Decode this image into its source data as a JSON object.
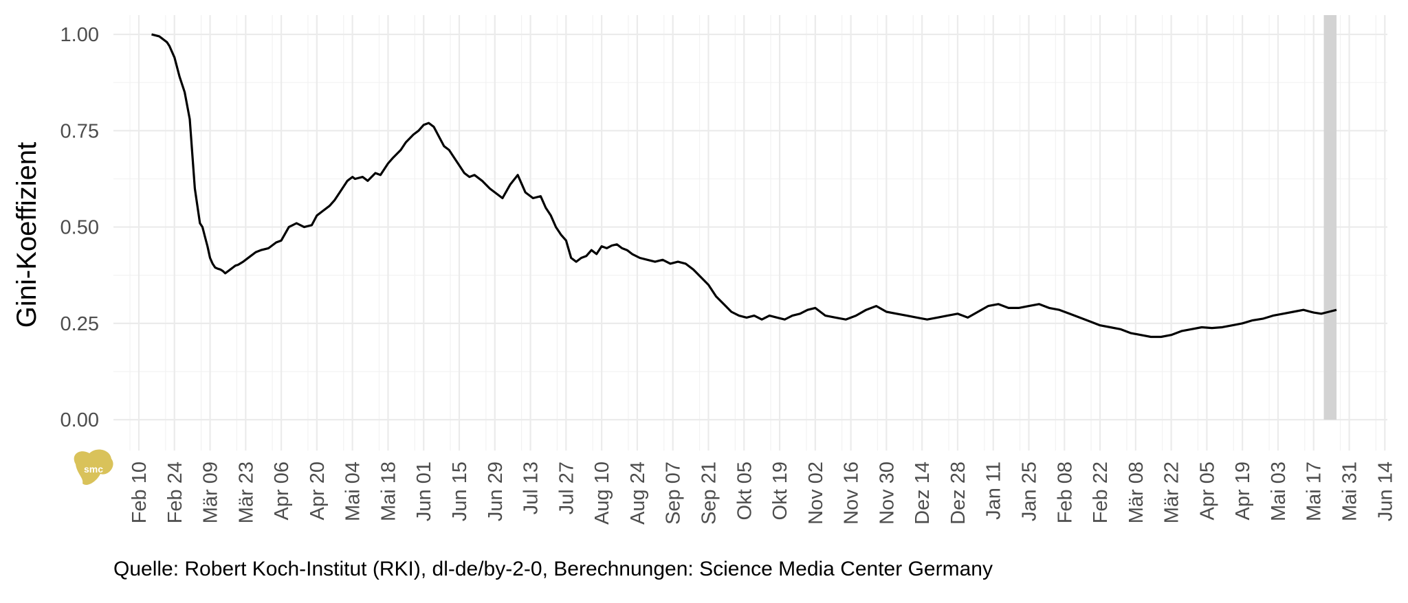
{
  "caption": "Quelle: Robert Koch-Institut (RKI), dl-de/by-2-0, Berechnungen: Science Media Center Germany",
  "logo_text": "smc",
  "colors": {
    "line": "#000000",
    "highlight": "#d3d3d3",
    "logo": "#d9c25a"
  },
  "chart_data": {
    "type": "line",
    "title": "",
    "xlabel": "",
    "ylabel": "Gini-Koeffizient",
    "x_start": "2020-01-31",
    "x_end": "2021-06-15",
    "ylim": [
      -0.08,
      1.05
    ],
    "y_ticks": [
      0.0,
      0.25,
      0.5,
      0.75,
      1.0
    ],
    "y_tick_labels": [
      "0.00",
      "0.25",
      "0.50",
      "0.75",
      "1.00"
    ],
    "x_ticks": [
      {
        "date": "2020-02-10",
        "label": "Feb 10"
      },
      {
        "date": "2020-02-24",
        "label": "Feb 24"
      },
      {
        "date": "2020-03-09",
        "label": "Mär 09"
      },
      {
        "date": "2020-03-23",
        "label": "Mär 23"
      },
      {
        "date": "2020-04-06",
        "label": "Apr 06"
      },
      {
        "date": "2020-04-20",
        "label": "Apr 20"
      },
      {
        "date": "2020-05-04",
        "label": "Mai 04"
      },
      {
        "date": "2020-05-18",
        "label": "Mai 18"
      },
      {
        "date": "2020-06-01",
        "label": "Jun 01"
      },
      {
        "date": "2020-06-15",
        "label": "Jun 15"
      },
      {
        "date": "2020-06-29",
        "label": "Jun 29"
      },
      {
        "date": "2020-07-13",
        "label": "Jul 13"
      },
      {
        "date": "2020-07-27",
        "label": "Jul 27"
      },
      {
        "date": "2020-08-10",
        "label": "Aug 10"
      },
      {
        "date": "2020-08-24",
        "label": "Aug 24"
      },
      {
        "date": "2020-09-07",
        "label": "Sep 07"
      },
      {
        "date": "2020-09-21",
        "label": "Sep 21"
      },
      {
        "date": "2020-10-05",
        "label": "Okt 05"
      },
      {
        "date": "2020-10-19",
        "label": "Okt 19"
      },
      {
        "date": "2020-11-02",
        "label": "Nov 02"
      },
      {
        "date": "2020-11-16",
        "label": "Nov 16"
      },
      {
        "date": "2020-11-30",
        "label": "Nov 30"
      },
      {
        "date": "2020-12-14",
        "label": "Dez 14"
      },
      {
        "date": "2020-12-28",
        "label": "Dez 28"
      },
      {
        "date": "2021-01-11",
        "label": "Jan 11"
      },
      {
        "date": "2021-01-25",
        "label": "Jan 25"
      },
      {
        "date": "2021-02-08",
        "label": "Feb 08"
      },
      {
        "date": "2021-02-22",
        "label": "Feb 22"
      },
      {
        "date": "2021-03-08",
        "label": "Mär 08"
      },
      {
        "date": "2021-03-22",
        "label": "Mär 22"
      },
      {
        "date": "2021-04-05",
        "label": "Apr 05"
      },
      {
        "date": "2021-04-19",
        "label": "Apr 19"
      },
      {
        "date": "2021-05-03",
        "label": "Mai 03"
      },
      {
        "date": "2021-05-17",
        "label": "Mai 17"
      },
      {
        "date": "2021-05-31",
        "label": "Mai 31"
      },
      {
        "date": "2021-06-14",
        "label": "Jun 14"
      }
    ],
    "highlight_range": [
      "2021-05-21",
      "2021-05-26"
    ],
    "grid": true,
    "legend": "none",
    "series": [
      {
        "x": [
          "2020-02-15",
          "2020-02-18",
          "2020-02-19",
          "2020-02-20",
          "2020-02-21",
          "2020-02-22",
          "2020-02-24",
          "2020-02-26",
          "2020-02-28",
          "2020-03-01",
          "2020-03-03",
          "2020-03-05",
          "2020-03-06",
          "2020-03-07",
          "2020-03-08",
          "2020-03-09",
          "2020-03-10",
          "2020-03-11",
          "2020-03-12",
          "2020-03-13",
          "2020-03-14",
          "2020-03-15",
          "2020-03-17",
          "2020-03-18",
          "2020-03-19",
          "2020-03-20",
          "2020-03-22",
          "2020-03-23",
          "2020-03-25",
          "2020-03-27",
          "2020-03-29",
          "2020-04-01",
          "2020-04-04",
          "2020-04-06",
          "2020-04-09",
          "2020-04-12",
          "2020-04-15",
          "2020-04-18",
          "2020-04-20",
          "2020-04-22",
          "2020-04-25",
          "2020-04-27",
          "2020-04-30",
          "2020-05-02",
          "2020-05-04",
          "2020-05-05",
          "2020-05-08",
          "2020-05-10",
          "2020-05-13",
          "2020-05-15",
          "2020-05-18",
          "2020-05-20",
          "2020-05-23",
          "2020-05-25",
          "2020-05-28",
          "2020-05-30",
          "2020-06-01",
          "2020-06-03",
          "2020-06-05",
          "2020-06-07",
          "2020-06-09",
          "2020-06-11",
          "2020-06-13",
          "2020-06-15",
          "2020-06-17",
          "2020-06-19",
          "2020-06-21",
          "2020-06-24",
          "2020-06-27",
          "2020-06-29",
          "2020-07-02",
          "2020-07-05",
          "2020-07-08",
          "2020-07-11",
          "2020-07-14",
          "2020-07-17",
          "2020-07-19",
          "2020-07-21",
          "2020-07-23",
          "2020-07-25",
          "2020-07-27",
          "2020-07-29",
          "2020-07-31",
          "2020-08-02",
          "2020-08-04",
          "2020-08-06",
          "2020-08-08",
          "2020-08-10",
          "2020-08-12",
          "2020-08-14",
          "2020-08-16",
          "2020-08-18",
          "2020-08-20",
          "2020-08-22",
          "2020-08-25",
          "2020-08-28",
          "2020-08-31",
          "2020-09-03",
          "2020-09-06",
          "2020-09-09",
          "2020-09-12",
          "2020-09-15",
          "2020-09-18",
          "2020-09-21",
          "2020-09-24",
          "2020-09-27",
          "2020-09-30",
          "2020-10-03",
          "2020-10-06",
          "2020-10-09",
          "2020-10-12",
          "2020-10-15",
          "2020-10-18",
          "2020-10-21",
          "2020-10-24",
          "2020-10-27",
          "2020-10-30",
          "2020-11-02",
          "2020-11-06",
          "2020-11-10",
          "2020-11-14",
          "2020-11-18",
          "2020-11-22",
          "2020-11-26",
          "2020-11-30",
          "2020-12-04",
          "2020-12-08",
          "2020-12-12",
          "2020-12-16",
          "2020-12-20",
          "2020-12-24",
          "2020-12-28",
          "2021-01-01",
          "2021-01-05",
          "2021-01-09",
          "2021-01-13",
          "2021-01-17",
          "2021-01-21",
          "2021-01-25",
          "2021-01-29",
          "2021-02-02",
          "2021-02-06",
          "2021-02-10",
          "2021-02-14",
          "2021-02-18",
          "2021-02-22",
          "2021-02-26",
          "2021-03-02",
          "2021-03-06",
          "2021-03-10",
          "2021-03-14",
          "2021-03-18",
          "2021-03-22",
          "2021-03-26",
          "2021-03-30",
          "2021-04-03",
          "2021-04-07",
          "2021-04-11",
          "2021-04-15",
          "2021-04-19",
          "2021-04-23",
          "2021-04-27",
          "2021-05-01",
          "2021-05-05",
          "2021-05-09",
          "2021-05-13",
          "2021-05-17",
          "2021-05-20",
          "2021-05-23",
          "2021-05-26"
        ],
        "y": [
          1.0,
          0.995,
          0.99,
          0.985,
          0.98,
          0.97,
          0.94,
          0.89,
          0.85,
          0.78,
          0.6,
          0.51,
          0.5,
          0.475,
          0.45,
          0.42,
          0.405,
          0.395,
          0.392,
          0.39,
          0.386,
          0.38,
          0.39,
          0.395,
          0.4,
          0.402,
          0.41,
          0.415,
          0.425,
          0.435,
          0.44,
          0.445,
          0.46,
          0.465,
          0.5,
          0.51,
          0.5,
          0.505,
          0.53,
          0.54,
          0.555,
          0.57,
          0.6,
          0.62,
          0.63,
          0.625,
          0.63,
          0.62,
          0.64,
          0.635,
          0.665,
          0.68,
          0.7,
          0.72,
          0.74,
          0.75,
          0.765,
          0.77,
          0.76,
          0.735,
          0.71,
          0.7,
          0.68,
          0.66,
          0.64,
          0.63,
          0.635,
          0.62,
          0.6,
          0.59,
          0.575,
          0.61,
          0.635,
          0.59,
          0.575,
          0.58,
          0.55,
          0.53,
          0.5,
          0.48,
          0.465,
          0.42,
          0.41,
          0.42,
          0.425,
          0.44,
          0.43,
          0.45,
          0.445,
          0.452,
          0.455,
          0.445,
          0.44,
          0.43,
          0.42,
          0.415,
          0.41,
          0.415,
          0.405,
          0.41,
          0.405,
          0.39,
          0.37,
          0.35,
          0.32,
          0.3,
          0.28,
          0.27,
          0.265,
          0.27,
          0.26,
          0.27,
          0.265,
          0.26,
          0.27,
          0.275,
          0.285,
          0.29,
          0.27,
          0.265,
          0.26,
          0.27,
          0.285,
          0.295,
          0.28,
          0.275,
          0.27,
          0.265,
          0.26,
          0.265,
          0.27,
          0.275,
          0.265,
          0.28,
          0.295,
          0.3,
          0.29,
          0.29,
          0.295,
          0.3,
          0.29,
          0.285,
          0.275,
          0.265,
          0.255,
          0.245,
          0.24,
          0.235,
          0.225,
          0.22,
          0.215,
          0.215,
          0.22,
          0.23,
          0.235,
          0.24,
          0.238,
          0.24,
          0.245,
          0.25,
          0.258,
          0.262,
          0.27,
          0.275,
          0.28,
          0.285,
          0.278,
          0.275,
          0.28,
          0.285
        ]
      }
    ]
  }
}
